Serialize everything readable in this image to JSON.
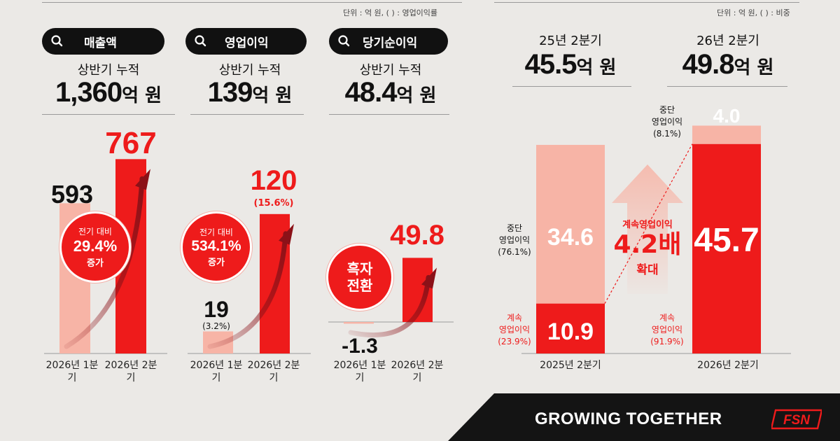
{
  "left": {
    "unit_note": "단위 : 억 원, ( ) : 영업이익률",
    "metrics": [
      {
        "label": "매출액",
        "sub": "상반기 누적",
        "total": "1,360",
        "total_unit": "억 원",
        "change_line1": "전기 대비",
        "change_value": "29.4%",
        "change_line3": "증가"
      },
      {
        "label": "영업이익",
        "sub": "상반기 누적",
        "total": "139",
        "total_unit": "억 원",
        "change_line1": "전기 대비",
        "change_value": "534.1%",
        "change_line3": "증가"
      },
      {
        "label": "당기순이익",
        "sub": "상반기 누적",
        "total": "48.4",
        "total_unit": "억 원",
        "change_line1": "흑자",
        "change_line2": "전환"
      }
    ]
  },
  "right": {
    "unit_note": "단위 : 억 원, ( ) : 비중",
    "periods": [
      {
        "label": "25년 2분기",
        "total": "45.5",
        "total_unit": "억 원"
      },
      {
        "label": "26년 2분기",
        "total": "49.8",
        "total_unit": "억 원"
      }
    ],
    "center_line1": "계속영업이익",
    "center_value": "4.2배",
    "center_line3": "확대",
    "seg_labels": {
      "d25_l1": "중단",
      "d25_l2": "영업이익",
      "d25_l3": "(76.1%)",
      "c25_l1": "계속",
      "c25_l2": "영업이익",
      "c25_l3": "(23.9%)",
      "d26_l1": "중단",
      "d26_l2": "영업이익",
      "d26_l3": "(8.1%)",
      "c26_l1": "계속",
      "c26_l2": "영업이익",
      "c26_l3": "(91.9%)"
    }
  },
  "footer": {
    "tagline": "GROWING TOGETHER",
    "logo_text": "FSN"
  },
  "colors": {
    "red": "#ee1b1b",
    "pink": "#f7b4a6",
    "dark": "#111111",
    "bg": "#ebe9e6",
    "darkred": "#8b1118"
  },
  "chart_data": [
    {
      "type": "bar",
      "title": "매출액",
      "categories": [
        "2026년 1분기",
        "2026년 2분기"
      ],
      "values": [
        593,
        767
      ],
      "labels": [
        "593",
        "767"
      ],
      "ylim": [
        0,
        800
      ]
    },
    {
      "type": "bar",
      "title": "영업이익",
      "categories": [
        "2026년 1분기",
        "2026년 2분기"
      ],
      "values": [
        19,
        120
      ],
      "labels": [
        "19",
        "120"
      ],
      "margins": [
        "(3.2%)",
        "(15.6%)"
      ],
      "ylim": [
        0,
        160
      ]
    },
    {
      "type": "bar",
      "title": "당기순이익",
      "categories": [
        "2026년 1분기",
        "2026년 2분기"
      ],
      "values": [
        -1.3,
        49.8
      ],
      "labels": [
        "-1.3",
        "49.8"
      ],
      "ylim": [
        -5,
        80
      ]
    },
    {
      "type": "bar",
      "stacked": true,
      "categories": [
        "2025년 2분기",
        "2026년 2분기"
      ],
      "series": [
        {
          "name": "계속영업이익",
          "values": [
            10.9,
            45.7
          ],
          "labels": [
            "10.9",
            "45.7"
          ]
        },
        {
          "name": "중단영업이익",
          "values": [
            34.6,
            4.0
          ],
          "labels": [
            "34.6",
            "4.0"
          ]
        }
      ],
      "ylim": [
        0,
        50
      ]
    }
  ]
}
